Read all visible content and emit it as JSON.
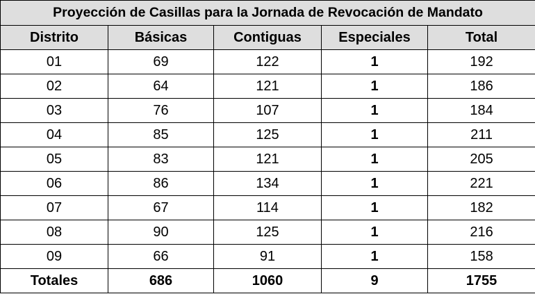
{
  "title": "Proyección de Casillas para la Jornada de Revocación de Mandato",
  "headers": [
    "Distrito",
    "Básicas",
    "Contiguas",
    "Especiales",
    "Total"
  ],
  "rows": [
    [
      "01",
      "69",
      "122",
      "1",
      "192"
    ],
    [
      "02",
      "64",
      "121",
      "1",
      "186"
    ],
    [
      "03",
      "76",
      "107",
      "1",
      "184"
    ],
    [
      "04",
      "85",
      "125",
      "1",
      "211"
    ],
    [
      "05",
      "83",
      "121",
      "1",
      "205"
    ],
    [
      "06",
      "86",
      "134",
      "1",
      "221"
    ],
    [
      "07",
      "67",
      "114",
      "1",
      "182"
    ],
    [
      "08",
      "90",
      "125",
      "1",
      "216"
    ],
    [
      "09",
      "66",
      "91",
      "1",
      "158"
    ]
  ],
  "totals": [
    "Totales",
    "686",
    "1060",
    "9",
    "1755"
  ],
  "colors": {
    "header_bg": "#dedede",
    "border": "#000000"
  }
}
